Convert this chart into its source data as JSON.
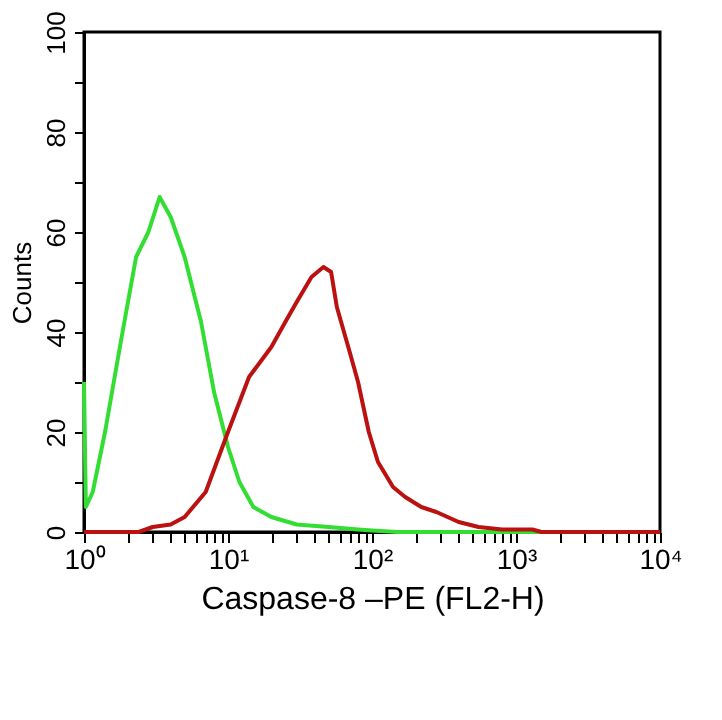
{
  "chart_data": {
    "type": "line",
    "xlabel": "Caspase-8 –PE (FL2-H)",
    "ylabel": "Counts",
    "log": "x",
    "xlim": [
      1,
      10000
    ],
    "ylim": [
      0,
      100
    ],
    "xticks": [
      {
        "value": 1,
        "label": "10⁰"
      },
      {
        "value": 2,
        "label": null
      },
      {
        "value": 3,
        "label": null
      },
      {
        "value": 4,
        "label": null
      },
      {
        "value": 5,
        "label": null
      },
      {
        "value": 6,
        "label": null
      },
      {
        "value": 7,
        "label": null
      },
      {
        "value": 8,
        "label": null
      },
      {
        "value": 9,
        "label": null
      },
      {
        "value": 10,
        "label": "10¹"
      },
      {
        "value": 20,
        "label": null
      },
      {
        "value": 30,
        "label": null
      },
      {
        "value": 40,
        "label": null
      },
      {
        "value": 50,
        "label": null
      },
      {
        "value": 60,
        "label": null
      },
      {
        "value": 70,
        "label": null
      },
      {
        "value": 80,
        "label": null
      },
      {
        "value": 90,
        "label": null
      },
      {
        "value": 100,
        "label": "10²"
      },
      {
        "value": 200,
        "label": null
      },
      {
        "value": 300,
        "label": null
      },
      {
        "value": 400,
        "label": null
      },
      {
        "value": 500,
        "label": null
      },
      {
        "value": 600,
        "label": null
      },
      {
        "value": 700,
        "label": null
      },
      {
        "value": 800,
        "label": null
      },
      {
        "value": 900,
        "label": null
      },
      {
        "value": 1000,
        "label": "10³"
      },
      {
        "value": 2000,
        "label": null
      },
      {
        "value": 3000,
        "label": null
      },
      {
        "value": 4000,
        "label": null
      },
      {
        "value": 5000,
        "label": null
      },
      {
        "value": 6000,
        "label": null
      },
      {
        "value": 7000,
        "label": null
      },
      {
        "value": 8000,
        "label": null
      },
      {
        "value": 9000,
        "label": null
      },
      {
        "value": 10000,
        "label": "10⁴"
      }
    ],
    "yticks": [
      0,
      {
        "value": 10,
        "label": null
      },
      20,
      {
        "value": 30,
        "label": null
      },
      40,
      {
        "value": 50,
        "label": null
      },
      60,
      {
        "value": 70,
        "label": null
      },
      80,
      {
        "value": 90,
        "label": null
      },
      100
    ],
    "grid": false,
    "legend": false,
    "marker": "none",
    "line_style": "solid",
    "series": [
      {
        "color": "#33dd33",
        "x": [
          1,
          1.03,
          1.15,
          1.4,
          1.8,
          2.3,
          2.8,
          3.35,
          4,
          5,
          6.5,
          8,
          10,
          12,
          15,
          20,
          30,
          50,
          80,
          100,
          150,
          10000
        ],
        "values": [
          30,
          5,
          8,
          20,
          38,
          55,
          60,
          67,
          63,
          55,
          42,
          28,
          17,
          10,
          5,
          3,
          1.5,
          1,
          0.5,
          0.3,
          0,
          0
        ]
      },
      {
        "color": "#bb1111",
        "x": [
          1,
          2.4,
          3,
          4,
          5,
          7,
          10,
          14,
          20,
          25,
          30,
          38,
          46,
          52,
          57,
          70,
          80,
          95,
          110,
          140,
          170,
          220,
          280,
          400,
          550,
          800,
          1300,
          1500,
          10000
        ],
        "values": [
          0,
          0,
          1,
          1.5,
          3,
          8,
          20,
          31,
          37,
          42,
          46,
          51,
          53,
          52,
          45,
          36,
          30,
          20,
          14,
          9,
          7,
          5,
          4,
          2,
          1,
          0.5,
          0.5,
          0,
          0
        ]
      }
    ]
  }
}
